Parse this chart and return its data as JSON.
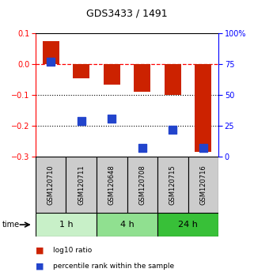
{
  "title": "GDS3433 / 1491",
  "samples": [
    "GSM120710",
    "GSM120711",
    "GSM120648",
    "GSM120708",
    "GSM120715",
    "GSM120716"
  ],
  "log10_ratio": [
    0.075,
    -0.045,
    -0.065,
    -0.09,
    -0.1,
    -0.285
  ],
  "percentile_rank": [
    0.77,
    0.29,
    0.31,
    0.07,
    0.22,
    0.07
  ],
  "groups": [
    {
      "label": "1 h",
      "indices": [
        0,
        1
      ],
      "color": "#c8f0c8"
    },
    {
      "label": "4 h",
      "indices": [
        2,
        3
      ],
      "color": "#90e090"
    },
    {
      "label": "24 h",
      "indices": [
        4,
        5
      ],
      "color": "#38c038"
    }
  ],
  "ylim_left": [
    -0.3,
    0.1
  ],
  "ylim_right": [
    0.0,
    1.0
  ],
  "yticks_left": [
    -0.3,
    -0.2,
    -0.1,
    0.0,
    0.1
  ],
  "yticks_right": [
    0.0,
    0.25,
    0.5,
    0.75,
    1.0
  ],
  "ytick_labels_right": [
    "0",
    "25",
    "50",
    "75",
    "100%"
  ],
  "bar_color": "#cc2200",
  "dot_color": "#2244cc",
  "dotted_lines": [
    -0.1,
    -0.2
  ],
  "bar_width": 0.55,
  "dot_size": 50,
  "sample_box_color": "#cccccc",
  "legend_items": [
    {
      "color": "#cc2200",
      "label": "log10 ratio"
    },
    {
      "color": "#2244cc",
      "label": "percentile rank within the sample"
    }
  ]
}
